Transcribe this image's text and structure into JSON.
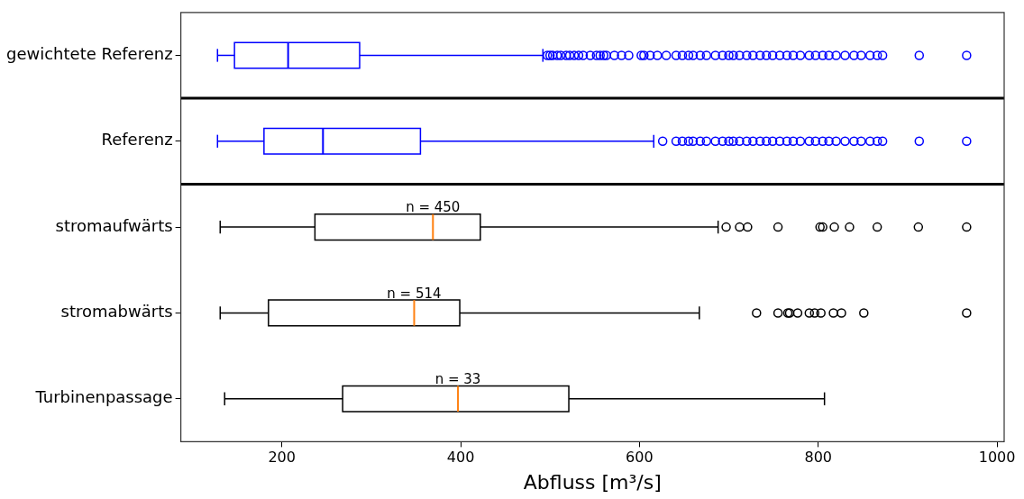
{
  "chart_data": {
    "type": "box",
    "orientation": "horizontal",
    "xlabel": "Abfluss [m³/s]",
    "categories": [
      "gewichtete Referenz",
      "Referenz",
      "stromaufwärts",
      "stromabwärts",
      "Turbinenpassage"
    ],
    "xlim": [
      87,
      1008
    ],
    "xticks": [
      200,
      400,
      600,
      800,
      1000
    ],
    "grid": false,
    "legend": false,
    "series": [
      {
        "color": "#0000ff",
        "boxes": [
          {
            "low": 128,
            "q1": 147,
            "median": 207,
            "q3": 287,
            "high": 492,
            "outliers": [
              497,
              500,
              503,
              508,
              512,
              518,
              522,
              527,
              532,
              537,
              545,
              552,
              556,
              560,
              563,
              572,
              580,
              588,
              602,
              605,
              612,
              620,
              630,
              641,
              648,
              655,
              660,
              668,
              675,
              685,
              693,
              700,
              705,
              712,
              720,
              727,
              735,
              742,
              749,
              757,
              765,
              772,
              780,
              790,
              797,
              805,
              812,
              820,
              830,
              840,
              848,
              858,
              866,
              872,
              913,
              966
            ]
          },
          {
            "low": 128,
            "q1": 180,
            "median": 246,
            "q3": 355,
            "high": 616,
            "outliers": [
              626,
              641,
              648,
              655,
              660,
              668,
              675,
              685,
              693,
              700,
              705,
              712,
              720,
              727,
              735,
              742,
              749,
              757,
              765,
              772,
              780,
              790,
              797,
              805,
              812,
              820,
              830,
              840,
              848,
              858,
              866,
              872,
              913,
              966
            ]
          },
          null,
          null,
          null
        ]
      },
      {
        "color": "#000000",
        "boxes": [
          null,
          null,
          {
            "low": 131,
            "q1": 237,
            "median": 369,
            "q3": 422,
            "high": 688,
            "outliers": [
              697,
              712,
              721,
              755,
              802,
              805,
              818,
              835,
              866,
              912,
              966
            ]
          },
          {
            "low": 131,
            "q1": 185,
            "median": 348,
            "q3": 399,
            "high": 667,
            "outliers": [
              731,
              755,
              766,
              768,
              777,
              790,
              796,
              803,
              817,
              826,
              851,
              966
            ]
          },
          {
            "low": 136,
            "q1": 268,
            "median": 397,
            "q3": 521,
            "high": 807
          }
        ]
      }
    ],
    "annotations": [
      "n = 450",
      "n = 514",
      "n = 33"
    ]
  }
}
